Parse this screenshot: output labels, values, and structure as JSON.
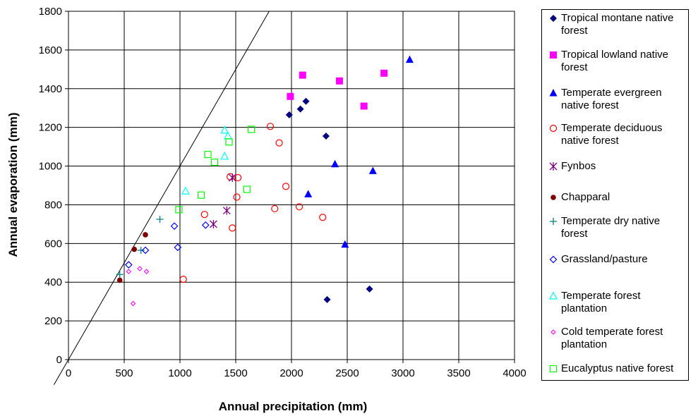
{
  "chart_data": {
    "type": "scatter",
    "xlabel": "Annual precipitation (mm)",
    "ylabel": "Annual evaporation (mm)",
    "xlim": [
      0,
      4000
    ],
    "ylim": [
      0,
      1800
    ],
    "xticks": [
      "0",
      "500",
      "1000",
      "1500",
      "2000",
      "2500",
      "3000",
      "3500",
      "4000"
    ],
    "yticks": [
      "0",
      "200",
      "400",
      "600",
      "800",
      "1000",
      "1200",
      "1400",
      "1600",
      "1800"
    ],
    "grid": true,
    "legend_position": "right",
    "reference_line": {
      "x": [
        0,
        1800
      ],
      "y": [
        0,
        1800
      ]
    },
    "series": [
      {
        "name": "Tropical montane native forest",
        "marker": "diamond-filled",
        "color": "#000080",
        "points": [
          [
            1980,
            1265
          ],
          [
            2080,
            1295
          ],
          [
            2130,
            1335
          ],
          [
            2310,
            1155
          ],
          [
            2320,
            310
          ],
          [
            2700,
            365
          ]
        ]
      },
      {
        "name": "Tropical lowland native forest",
        "marker": "square-filled",
        "color": "#ff00ff",
        "points": [
          [
            1990,
            1360
          ],
          [
            2100,
            1470
          ],
          [
            2430,
            1440
          ],
          [
            2650,
            1310
          ],
          [
            2830,
            1480
          ]
        ]
      },
      {
        "name": "Temperate evergreen native forest",
        "marker": "triangle-filled",
        "color": "#0000ff",
        "points": [
          [
            3060,
            1550
          ],
          [
            2390,
            1010
          ],
          [
            2730,
            975
          ],
          [
            2150,
            855
          ],
          [
            2480,
            595
          ]
        ]
      },
      {
        "name": "Temperate deciduous native forest",
        "marker": "circle-open",
        "color": "#ff0000",
        "points": [
          [
            1810,
            1205
          ],
          [
            1890,
            1120
          ],
          [
            1450,
            945
          ],
          [
            1520,
            940
          ],
          [
            1950,
            895
          ],
          [
            1510,
            840
          ],
          [
            1850,
            780
          ],
          [
            2070,
            790
          ],
          [
            1220,
            750
          ],
          [
            2280,
            735
          ],
          [
            1470,
            680
          ],
          [
            1030,
            415
          ]
        ]
      },
      {
        "name": "Fynbos",
        "marker": "asterisk",
        "color": "#800080",
        "points": [
          [
            1470,
            940
          ],
          [
            1420,
            770
          ],
          [
            1300,
            700
          ]
        ]
      },
      {
        "name": "Chapparal",
        "marker": "circle-filled",
        "color": "#800000",
        "points": [
          [
            690,
            645
          ],
          [
            590,
            570
          ],
          [
            460,
            410
          ]
        ]
      },
      {
        "name": "Temperate dry native forest",
        "marker": "plus",
        "color": "#008080",
        "points": [
          [
            820,
            725
          ],
          [
            650,
            565
          ],
          [
            460,
            440
          ]
        ]
      },
      {
        "name": "Grassland/pasture",
        "marker": "diamond-open",
        "color": "#0000ff",
        "points": [
          [
            950,
            690
          ],
          [
            1230,
            695
          ],
          [
            980,
            580
          ],
          [
            690,
            565
          ],
          [
            540,
            490
          ]
        ]
      },
      {
        "name": "Temperate forest plantation",
        "marker": "triangle-open",
        "color": "#00ffff",
        "points": [
          [
            1400,
            1185
          ],
          [
            1430,
            1155
          ],
          [
            1400,
            1050
          ],
          [
            1050,
            870
          ]
        ]
      },
      {
        "name": "Cold temperate forest plantation",
        "marker": "diamond-small-open",
        "color": "#ff00ff",
        "points": [
          [
            540,
            455
          ],
          [
            640,
            470
          ],
          [
            700,
            455
          ],
          [
            580,
            290
          ]
        ]
      },
      {
        "name": "Eucalyptus native forest",
        "marker": "square-open",
        "color": "#00ff00",
        "points": [
          [
            1640,
            1190
          ],
          [
            1440,
            1125
          ],
          [
            1250,
            1060
          ],
          [
            1310,
            1020
          ],
          [
            1600,
            880
          ],
          [
            1190,
            850
          ],
          [
            990,
            775
          ]
        ]
      }
    ]
  }
}
